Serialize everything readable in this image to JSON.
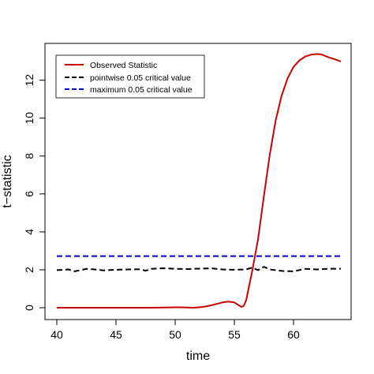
{
  "chart_data": {
    "type": "line",
    "title": "",
    "xlabel": "time",
    "ylabel": "t−statistic",
    "xlim": [
      40,
      64
    ],
    "ylim": [
      0,
      13.4
    ],
    "x_ticks": [
      40,
      45,
      50,
      55,
      60
    ],
    "y_ticks": [
      0,
      2,
      4,
      6,
      8,
      10,
      12
    ],
    "x_tick_labels": [
      "40",
      "45",
      "50",
      "55",
      "60"
    ],
    "y_tick_labels": [
      "0",
      "2",
      "4",
      "6",
      "8",
      "10",
      "12"
    ],
    "grid": false,
    "legend_position": "top-left",
    "series": [
      {
        "name": "Observed Statistic",
        "color": "#cc0000",
        "line_style": "solid",
        "x": [
          40,
          42,
          44,
          46,
          48,
          49,
          50,
          50.5,
          51,
          51.5,
          52,
          52.5,
          53,
          53.5,
          54,
          54.5,
          55,
          55.3,
          55.6,
          55.8,
          56,
          56.2,
          56.5,
          57,
          57.5,
          58,
          58.5,
          59,
          59.5,
          60,
          60.5,
          61,
          61.5,
          62,
          62.3,
          62.6,
          63,
          63.5,
          64
        ],
        "y": [
          0,
          0,
          0,
          0,
          0,
          0.01,
          0.02,
          0.02,
          0.01,
          0,
          0.02,
          0.06,
          0.12,
          0.2,
          0.28,
          0.32,
          0.28,
          0.16,
          0.04,
          0.1,
          0.4,
          1.0,
          1.9,
          3.6,
          5.9,
          8.1,
          9.9,
          11.2,
          12.1,
          12.7,
          13.05,
          13.25,
          13.35,
          13.38,
          13.37,
          13.3,
          13.2,
          13.1,
          12.99
        ]
      },
      {
        "name": "pointwise 0.05 critical value",
        "color": "#000000",
        "line_style": "dashed",
        "x": [
          40,
          41,
          41.5,
          42,
          42.5,
          43,
          44,
          45,
          46,
          47,
          47.5,
          48,
          48.5,
          49,
          50,
          51,
          52,
          53,
          54,
          55,
          56,
          56.5,
          57,
          57.5,
          58,
          59,
          60,
          61,
          62,
          63,
          64
        ],
        "y": [
          1.98,
          2.02,
          1.92,
          1.98,
          2.05,
          2.03,
          1.97,
          2.0,
          2.02,
          2.03,
          1.95,
          2.05,
          2.07,
          2.08,
          2.05,
          2.04,
          2.06,
          2.08,
          2.02,
          2.0,
          2.02,
          2.12,
          1.98,
          2.16,
          2.02,
          1.94,
          1.92,
          2.05,
          2.02,
          2.05,
          2.06
        ]
      },
      {
        "name": "maximum 0.05 critical value",
        "color": "#0000cc",
        "line_style": "dashed",
        "x": [
          40,
          64
        ],
        "y": [
          2.72,
          2.72
        ]
      }
    ]
  }
}
